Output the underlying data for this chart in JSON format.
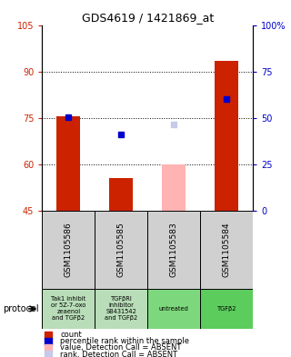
{
  "title": "GDS4619 / 1421869_at",
  "samples": [
    "GSM1105586",
    "GSM1105585",
    "GSM1105583",
    "GSM1105584"
  ],
  "protocols": [
    "Tak1 inhibit\nor 5Z-7-oxo\nzeaenol\nand TGFβ2",
    "TGFβRI\ninhibitor\nSB431542\nand TGFβ2",
    "untreated",
    "TGFβ2"
  ],
  "protocol_colors": [
    "#b8ddb8",
    "#b8ddb8",
    "#7dd87d",
    "#5ccc5c"
  ],
  "red_bars": [
    75.5,
    55.5,
    null,
    93.5
  ],
  "red_bar_bottoms": [
    45,
    45,
    null,
    45
  ],
  "blue_dots_left": [
    75.3,
    69.5,
    null,
    81.0
  ],
  "pink_bars": [
    null,
    null,
    60.0,
    null
  ],
  "pink_bar_bottoms": [
    null,
    null,
    45,
    null
  ],
  "lavender_dots_left": [
    null,
    null,
    73.0,
    null
  ],
  "ylim_left": [
    45,
    105
  ],
  "ylim_right": [
    0,
    100
  ],
  "yticks_left": [
    45,
    60,
    75,
    90,
    105
  ],
  "yticks_right": [
    0,
    25,
    50,
    75,
    100
  ],
  "ytick_labels_left": [
    "45",
    "60",
    "75",
    "90",
    "105"
  ],
  "ytick_labels_right": [
    "0",
    "25",
    "50",
    "75",
    "100%"
  ],
  "hlines": [
    60,
    75,
    90
  ],
  "left_axis_color": "#cc2200",
  "right_axis_color": "#0000cc",
  "bar_width": 0.45,
  "legend_colors": [
    "#cc2200",
    "#0000cc",
    "#ffb3b3",
    "#c5cae9"
  ],
  "legend_labels": [
    "count",
    "percentile rank within the sample",
    "value, Detection Call = ABSENT",
    "rank, Detection Call = ABSENT"
  ],
  "protocol_label": "protocol",
  "sample_bg": "#d0d0d0",
  "plot_bg": "#ffffff"
}
